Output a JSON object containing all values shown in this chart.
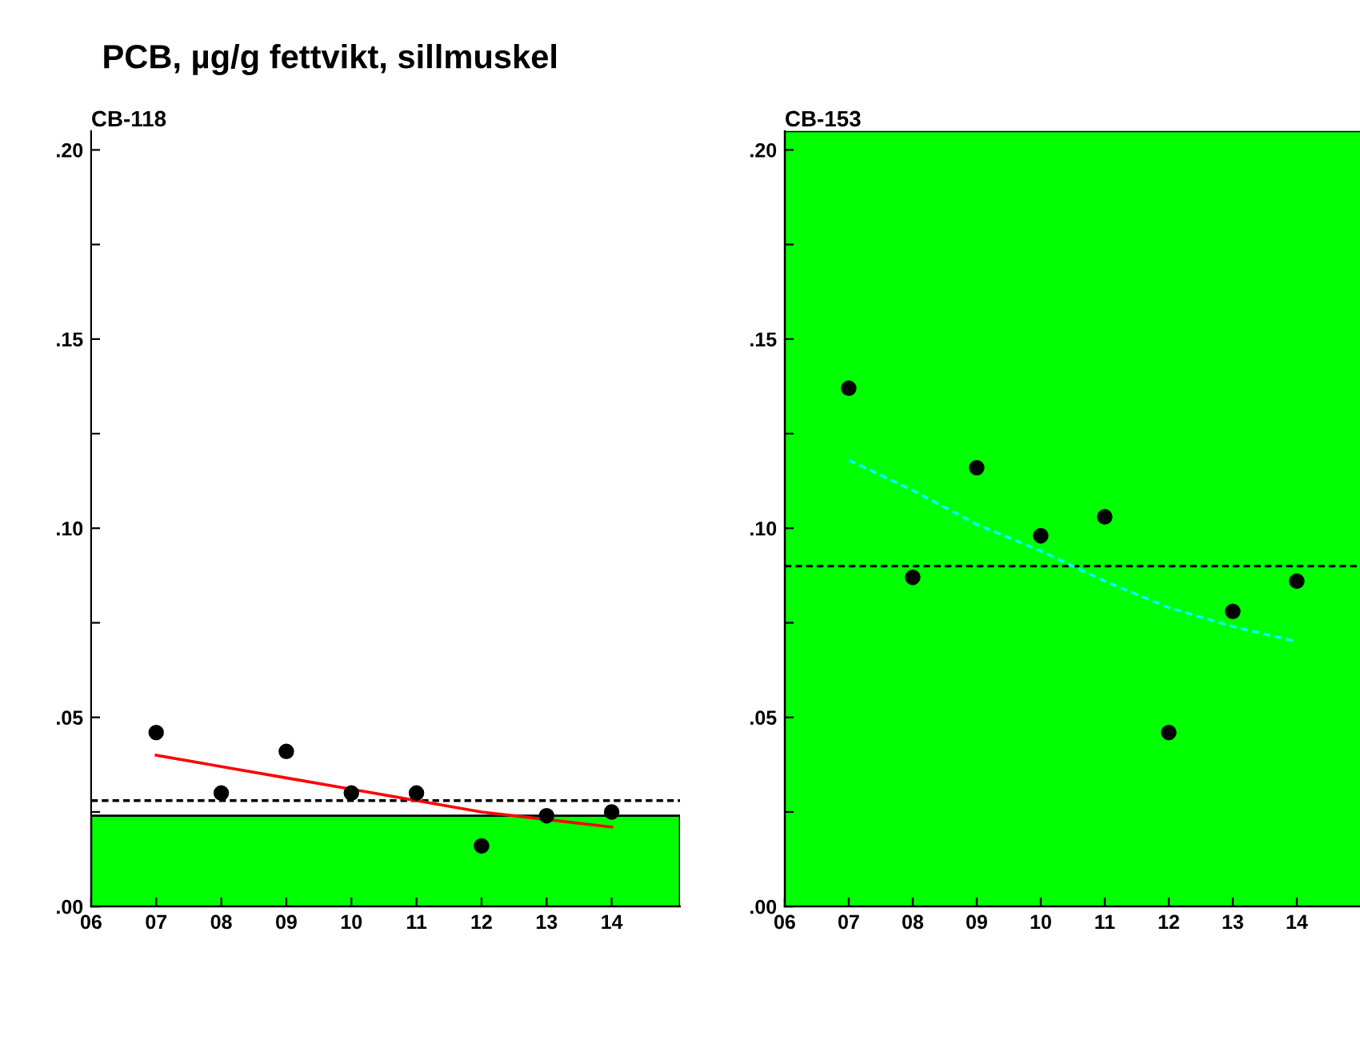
{
  "chart_data": [
    {
      "type": "scatter",
      "title": "PCB, µg/g fettvikt, sillmuskel",
      "subtitle": "CB-118",
      "grid": false,
      "x": [
        7,
        8,
        9,
        10,
        11,
        12,
        13,
        14
      ],
      "series": [
        {
          "color": "#000000",
          "marker": "circle",
          "values": [
            0.046,
            0.03,
            0.041,
            0.03,
            0.03,
            0.016,
            0.024,
            0.025
          ]
        },
        {
          "type": "line",
          "color": "#ff0000",
          "line_style": "solid",
          "x": [
            7,
            8,
            9,
            10,
            11,
            12,
            13,
            14
          ],
          "values": [
            0.04,
            0.037,
            0.034,
            0.031,
            0.028,
            0.025,
            0.023,
            0.021
          ]
        }
      ],
      "xlim": [
        6,
        15.05
      ],
      "ylim": [
        0,
        0.205
      ],
      "xticks": [
        {
          "value": 6,
          "label": "06"
        },
        {
          "value": 7,
          "label": "07"
        },
        {
          "value": 8,
          "label": "08"
        },
        {
          "value": 9,
          "label": "09"
        },
        10,
        11,
        12,
        13,
        14
      ],
      "yticks": [
        {
          "value": 0,
          "label": ".00"
        },
        {
          "value": 0.025,
          "label": null
        },
        {
          "value": 0.05,
          "label": ".05"
        },
        {
          "value": 0.075,
          "label": null
        },
        {
          "value": 0.1,
          "label": ".10"
        },
        {
          "value": 0.125,
          "label": null
        },
        {
          "value": 0.15,
          "label": ".15"
        },
        {
          "value": 0.175,
          "label": null
        },
        {
          "value": 0.2,
          "label": ".20"
        }
      ],
      "bands": [
        {
          "axis": "y",
          "from": 0,
          "to": 0.024,
          "color": "#00ff00"
        }
      ],
      "ref_lines": [
        {
          "axis": "y",
          "value": 0.028,
          "color": "#000000",
          "line_style": "dashed"
        }
      ]
    },
    {
      "type": "scatter",
      "subtitle": "CB-153",
      "grid": false,
      "x": [
        7,
        8,
        9,
        10,
        11,
        12,
        13,
        14
      ],
      "series": [
        {
          "color": "#000000",
          "marker": "circle",
          "values": [
            0.137,
            0.087,
            0.116,
            0.098,
            0.103,
            0.046,
            0.078,
            0.086
          ]
        },
        {
          "type": "line",
          "color": "#00ffff",
          "line_style": "dashed",
          "x": [
            7,
            8,
            9,
            10,
            11,
            12,
            13,
            14
          ],
          "values": [
            0.118,
            0.11,
            0.101,
            0.094,
            0.086,
            0.079,
            0.074,
            0.07
          ]
        }
      ],
      "xlim": [
        6,
        15.2
      ],
      "ylim": [
        0,
        0.205
      ],
      "xticks": [
        {
          "value": 6,
          "label": "06"
        },
        {
          "value": 7,
          "label": "07"
        },
        {
          "value": 8,
          "label": "08"
        },
        {
          "value": 9,
          "label": "09"
        },
        10,
        11,
        12,
        13,
        14
      ],
      "yticks": [
        {
          "value": 0,
          "label": ".00"
        },
        {
          "value": 0.025,
          "label": null
        },
        {
          "value": 0.05,
          "label": ".05"
        },
        {
          "value": 0.075,
          "label": null
        },
        {
          "value": 0.1,
          "label": ".10"
        },
        {
          "value": 0.125,
          "label": null
        },
        {
          "value": 0.15,
          "label": ".15"
        },
        {
          "value": 0.175,
          "label": null
        },
        {
          "value": 0.2,
          "label": ".20"
        }
      ],
      "bands": [
        {
          "axis": "y",
          "from": 0,
          "to": 0.205,
          "color": "#00ff00"
        }
      ],
      "ref_lines": [
        {
          "axis": "y",
          "value": 0.09,
          "color": "#000000",
          "line_style": "dashed"
        }
      ]
    }
  ]
}
